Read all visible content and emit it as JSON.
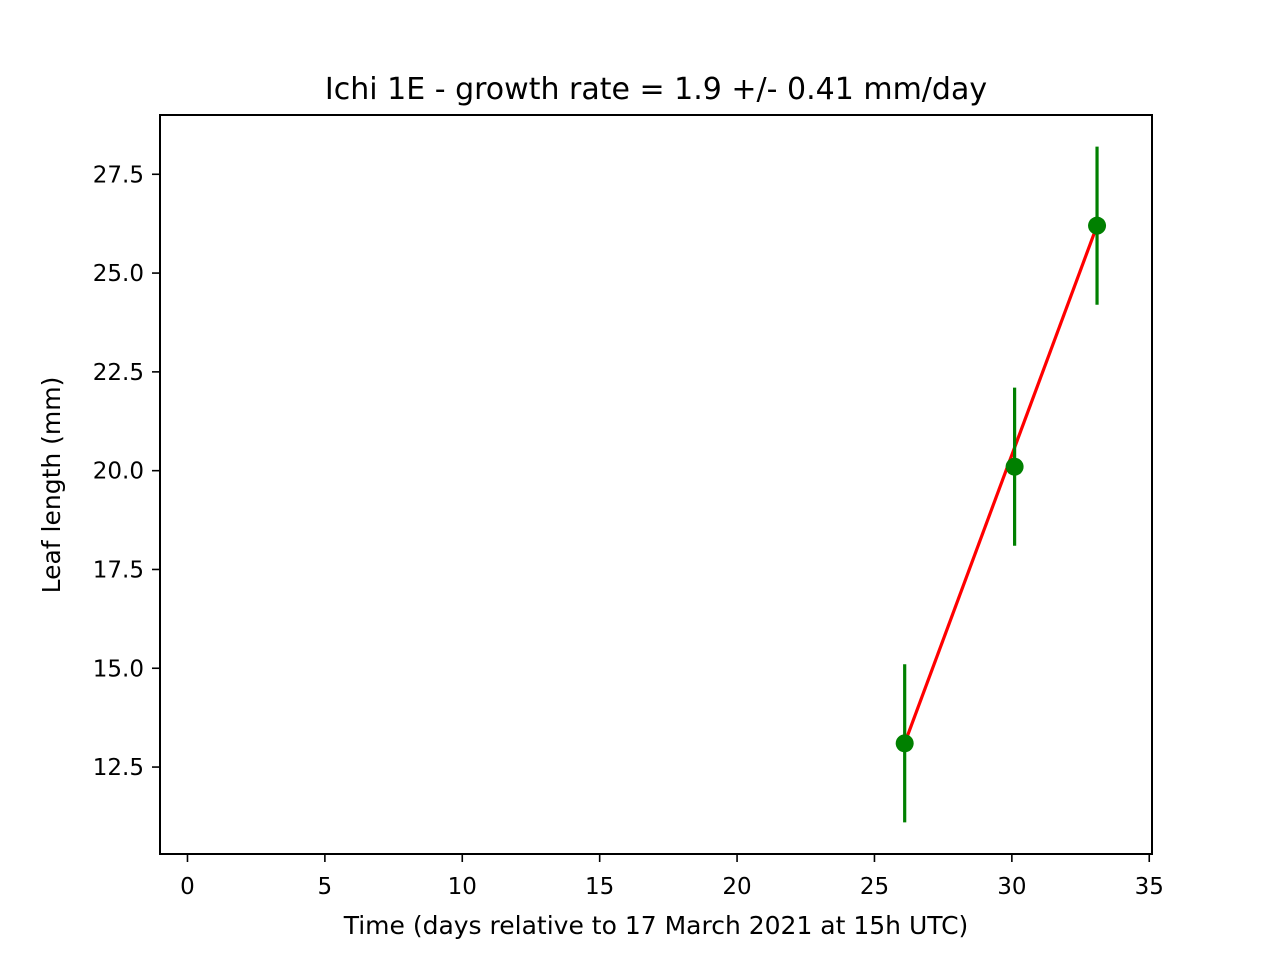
{
  "chart_data": {
    "type": "scatter",
    "title": "Ichi 1E  -  growth rate =  1.9 +/- 0.41 mm/day",
    "xlabel": "Time (days relative to 17 March 2021 at 15h UTC)",
    "ylabel": "Leaf length (mm)",
    "xlim": [
      -1,
      35.1
    ],
    "ylim": [
      10.3,
      29.0
    ],
    "x_ticks": [
      0,
      5,
      10,
      15,
      20,
      25,
      30,
      35
    ],
    "y_ticks": [
      12.5,
      15.0,
      17.5,
      20.0,
      22.5,
      25.0,
      27.5
    ],
    "grid": false,
    "series": [
      {
        "x": [
          26.1,
          30.1,
          33.1
        ],
        "y": [
          13.1,
          20.1,
          26.2
        ],
        "yerr": [
          2.0,
          2.0,
          2.0
        ],
        "color": "#008000",
        "marker": "circle"
      }
    ],
    "fit_line": {
      "x": [
        26.1,
        33.1
      ],
      "y": [
        13.1,
        26.2
      ],
      "color": "#ff0000"
    }
  }
}
